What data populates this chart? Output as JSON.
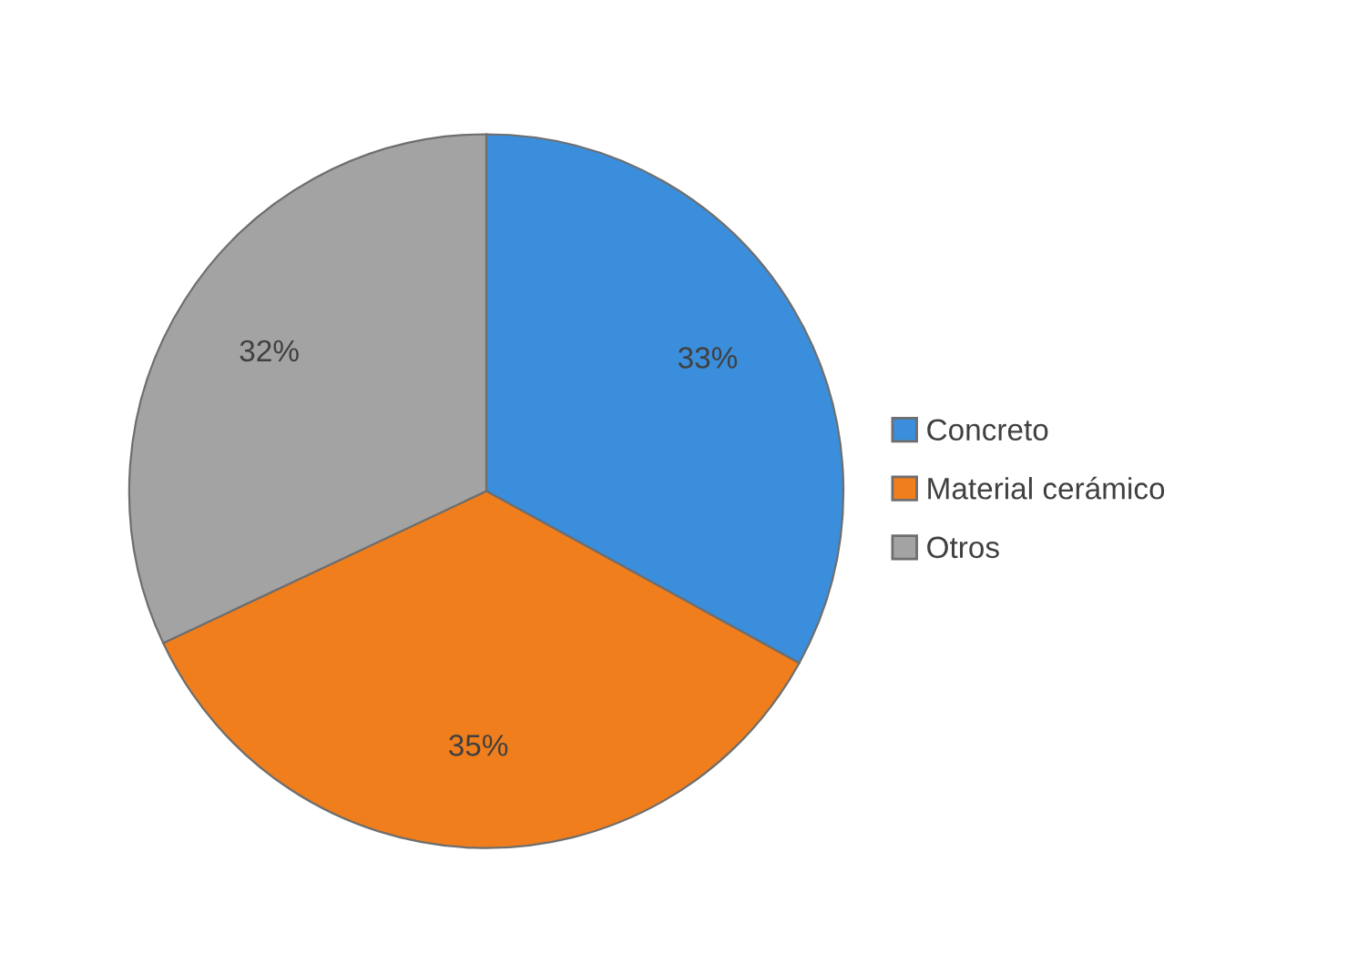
{
  "chart_data": {
    "type": "pie",
    "categories": [
      "Concreto",
      "Material cerámico",
      "Otros"
    ],
    "values": [
      33,
      35,
      32
    ],
    "colors": [
      "#3a8edb",
      "#f07e1c",
      "#a3a3a3"
    ],
    "value_labels": [
      "33%",
      "35%",
      "32%"
    ],
    "legend": "right"
  }
}
